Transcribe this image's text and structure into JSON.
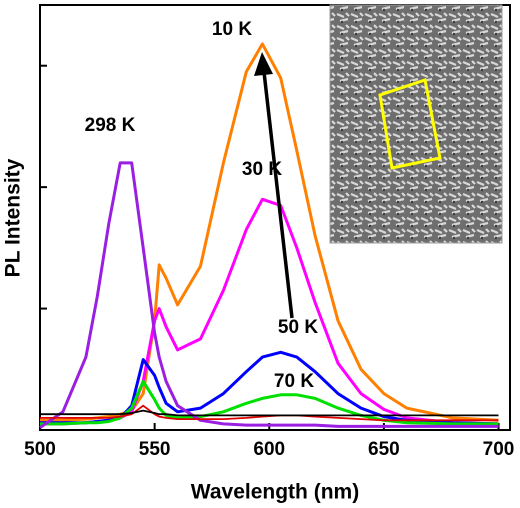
{
  "chart_data": {
    "type": "line",
    "x_label": "Wavelength (nm)",
    "y_label": "PL Intensity",
    "xlim": [
      500,
      705
    ],
    "xticks": [
      500,
      550,
      600,
      650,
      700
    ],
    "ylim": [
      0,
      3.5
    ],
    "yticks": [
      0,
      1,
      2,
      3
    ],
    "x": [
      500,
      510,
      520,
      525,
      530,
      535,
      540,
      545,
      550,
      552,
      555,
      560,
      570,
      580,
      590,
      597,
      605,
      612,
      620,
      630,
      640,
      650,
      660,
      680,
      700
    ],
    "series": [
      {
        "name": "10 K",
        "color": "#ff8000",
        "values": [
          0.08,
          0.08,
          0.09,
          0.1,
          0.11,
          0.13,
          0.16,
          0.3,
          0.9,
          1.36,
          1.25,
          1.03,
          1.35,
          2.2,
          2.95,
          3.18,
          2.9,
          2.3,
          1.6,
          0.9,
          0.5,
          0.3,
          0.18,
          0.1,
          0.08
        ]
      },
      {
        "name": "30 K",
        "color": "#ff00ff",
        "values": [
          0.05,
          0.05,
          0.06,
          0.07,
          0.08,
          0.1,
          0.15,
          0.4,
          0.9,
          1.0,
          0.85,
          0.66,
          0.75,
          1.15,
          1.65,
          1.9,
          1.85,
          1.5,
          1.05,
          0.55,
          0.3,
          0.17,
          0.1,
          0.06,
          0.05
        ]
      },
      {
        "name": "50 K",
        "color": "#0000ff",
        "values": [
          0.06,
          0.06,
          0.06,
          0.07,
          0.08,
          0.1,
          0.2,
          0.58,
          0.45,
          0.35,
          0.22,
          0.15,
          0.18,
          0.3,
          0.48,
          0.6,
          0.64,
          0.6,
          0.48,
          0.3,
          0.18,
          0.11,
          0.08,
          0.06,
          0.05
        ]
      },
      {
        "name": "70 K",
        "color": "#00e000",
        "values": [
          0.05,
          0.05,
          0.06,
          0.06,
          0.07,
          0.1,
          0.18,
          0.4,
          0.25,
          0.18,
          0.12,
          0.1,
          0.11,
          0.15,
          0.22,
          0.26,
          0.29,
          0.29,
          0.26,
          0.18,
          0.12,
          0.08,
          0.06,
          0.05,
          0.05
        ]
      },
      {
        "name": "298 K",
        "color": "#9a1fe0",
        "values": [
          0.02,
          0.15,
          0.6,
          1.1,
          1.7,
          2.2,
          2.2,
          1.5,
          0.8,
          0.6,
          0.4,
          0.2,
          0.08,
          0.05,
          0.04,
          0.04,
          0.04,
          0.04,
          0.04,
          0.03,
          0.03,
          0.03,
          0.03,
          0.03,
          0.03
        ]
      },
      {
        "color": "#e00000",
        "values": [
          0.1,
          0.1,
          0.1,
          0.1,
          0.1,
          0.11,
          0.13,
          0.2,
          0.13,
          0.11,
          0.1,
          0.09,
          0.09,
          0.09,
          0.1,
          0.11,
          0.12,
          0.12,
          0.11,
          0.1,
          0.09,
          0.08,
          0.08,
          0.08,
          0.08
        ]
      },
      {
        "color": "#000000",
        "values": [
          0.13,
          0.13,
          0.13,
          0.13,
          0.13,
          0.13,
          0.14,
          0.16,
          0.14,
          0.13,
          0.13,
          0.12,
          0.12,
          0.12,
          0.12,
          0.12,
          0.12,
          0.12,
          0.12,
          0.12,
          0.12,
          0.12,
          0.12,
          0.12,
          0.12
        ]
      }
    ]
  }
}
